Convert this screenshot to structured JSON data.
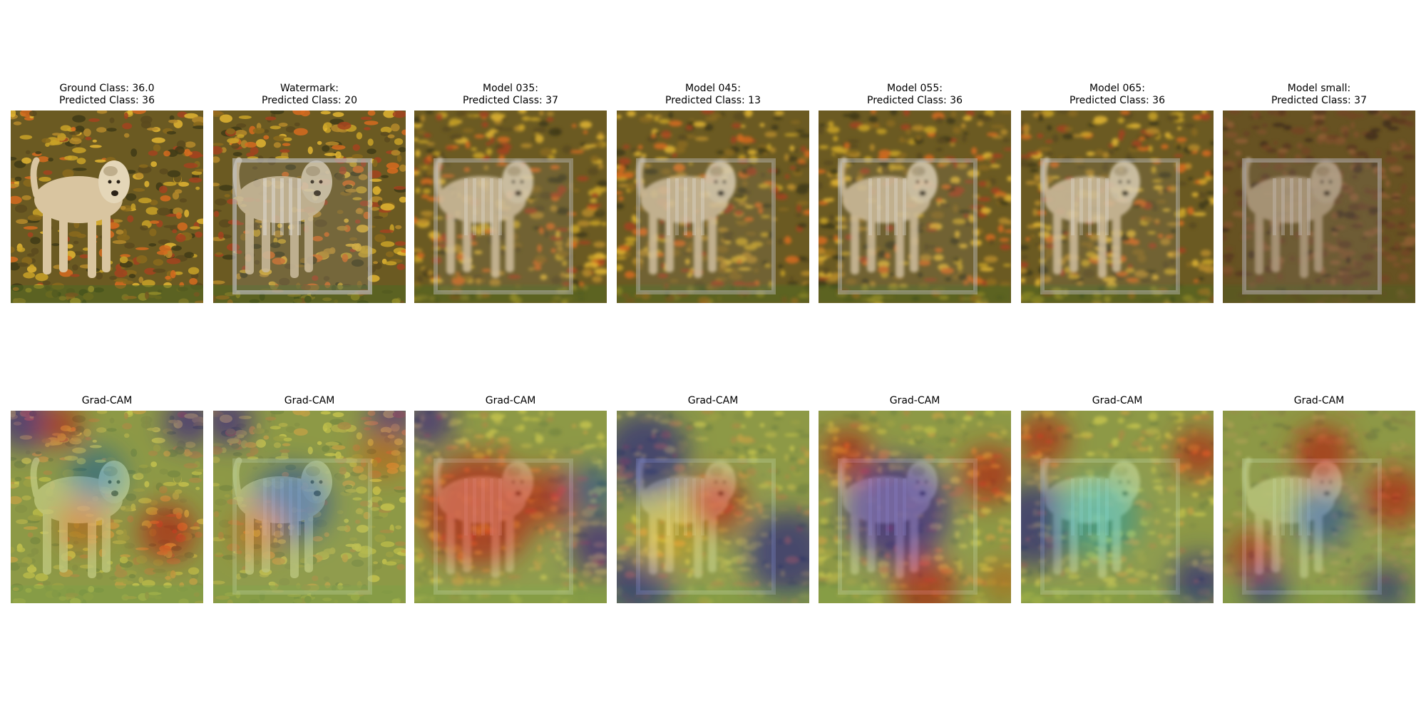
{
  "row_top": [
    {
      "line1": "Ground Class: 36.0",
      "line2": "Predicted Class: 36",
      "variant": "original"
    },
    {
      "line1": "Watermark:",
      "line2": "Predicted Class: 20",
      "variant": "watermark"
    },
    {
      "line1": "Model 035:",
      "line2": "Predicted Class: 37",
      "variant": "m035"
    },
    {
      "line1": "Model 045:",
      "line2": "Predicted Class: 13",
      "variant": "m045"
    },
    {
      "line1": "Model 055:",
      "line2": "Predicted Class: 36",
      "variant": "m055"
    },
    {
      "line1": "Model 065:",
      "line2": "Predicted Class: 36",
      "variant": "m065"
    },
    {
      "line1": "Model small:",
      "line2": "Predicted Class: 37",
      "variant": "small"
    }
  ],
  "row_bottom": [
    {
      "label": "Grad-CAM",
      "cam": "mixed"
    },
    {
      "label": "Grad-CAM",
      "cam": "cool-center"
    },
    {
      "label": "Grad-CAM",
      "cam": "red-left"
    },
    {
      "label": "Grad-CAM",
      "cam": "red-head"
    },
    {
      "label": "Grad-CAM",
      "cam": "blue-dog"
    },
    {
      "label": "Grad-CAM",
      "cam": "cyan-dog"
    },
    {
      "label": "Grad-CAM",
      "cam": "red-spots"
    }
  ],
  "colors": {
    "leaf_bg": "#6b5a22",
    "dog": "#d9c5a0",
    "jet_red": "#d7301f",
    "jet_yellow": "#e8d038",
    "jet_cyan": "#36c9b8",
    "jet_blue": "#2b3aa8"
  }
}
